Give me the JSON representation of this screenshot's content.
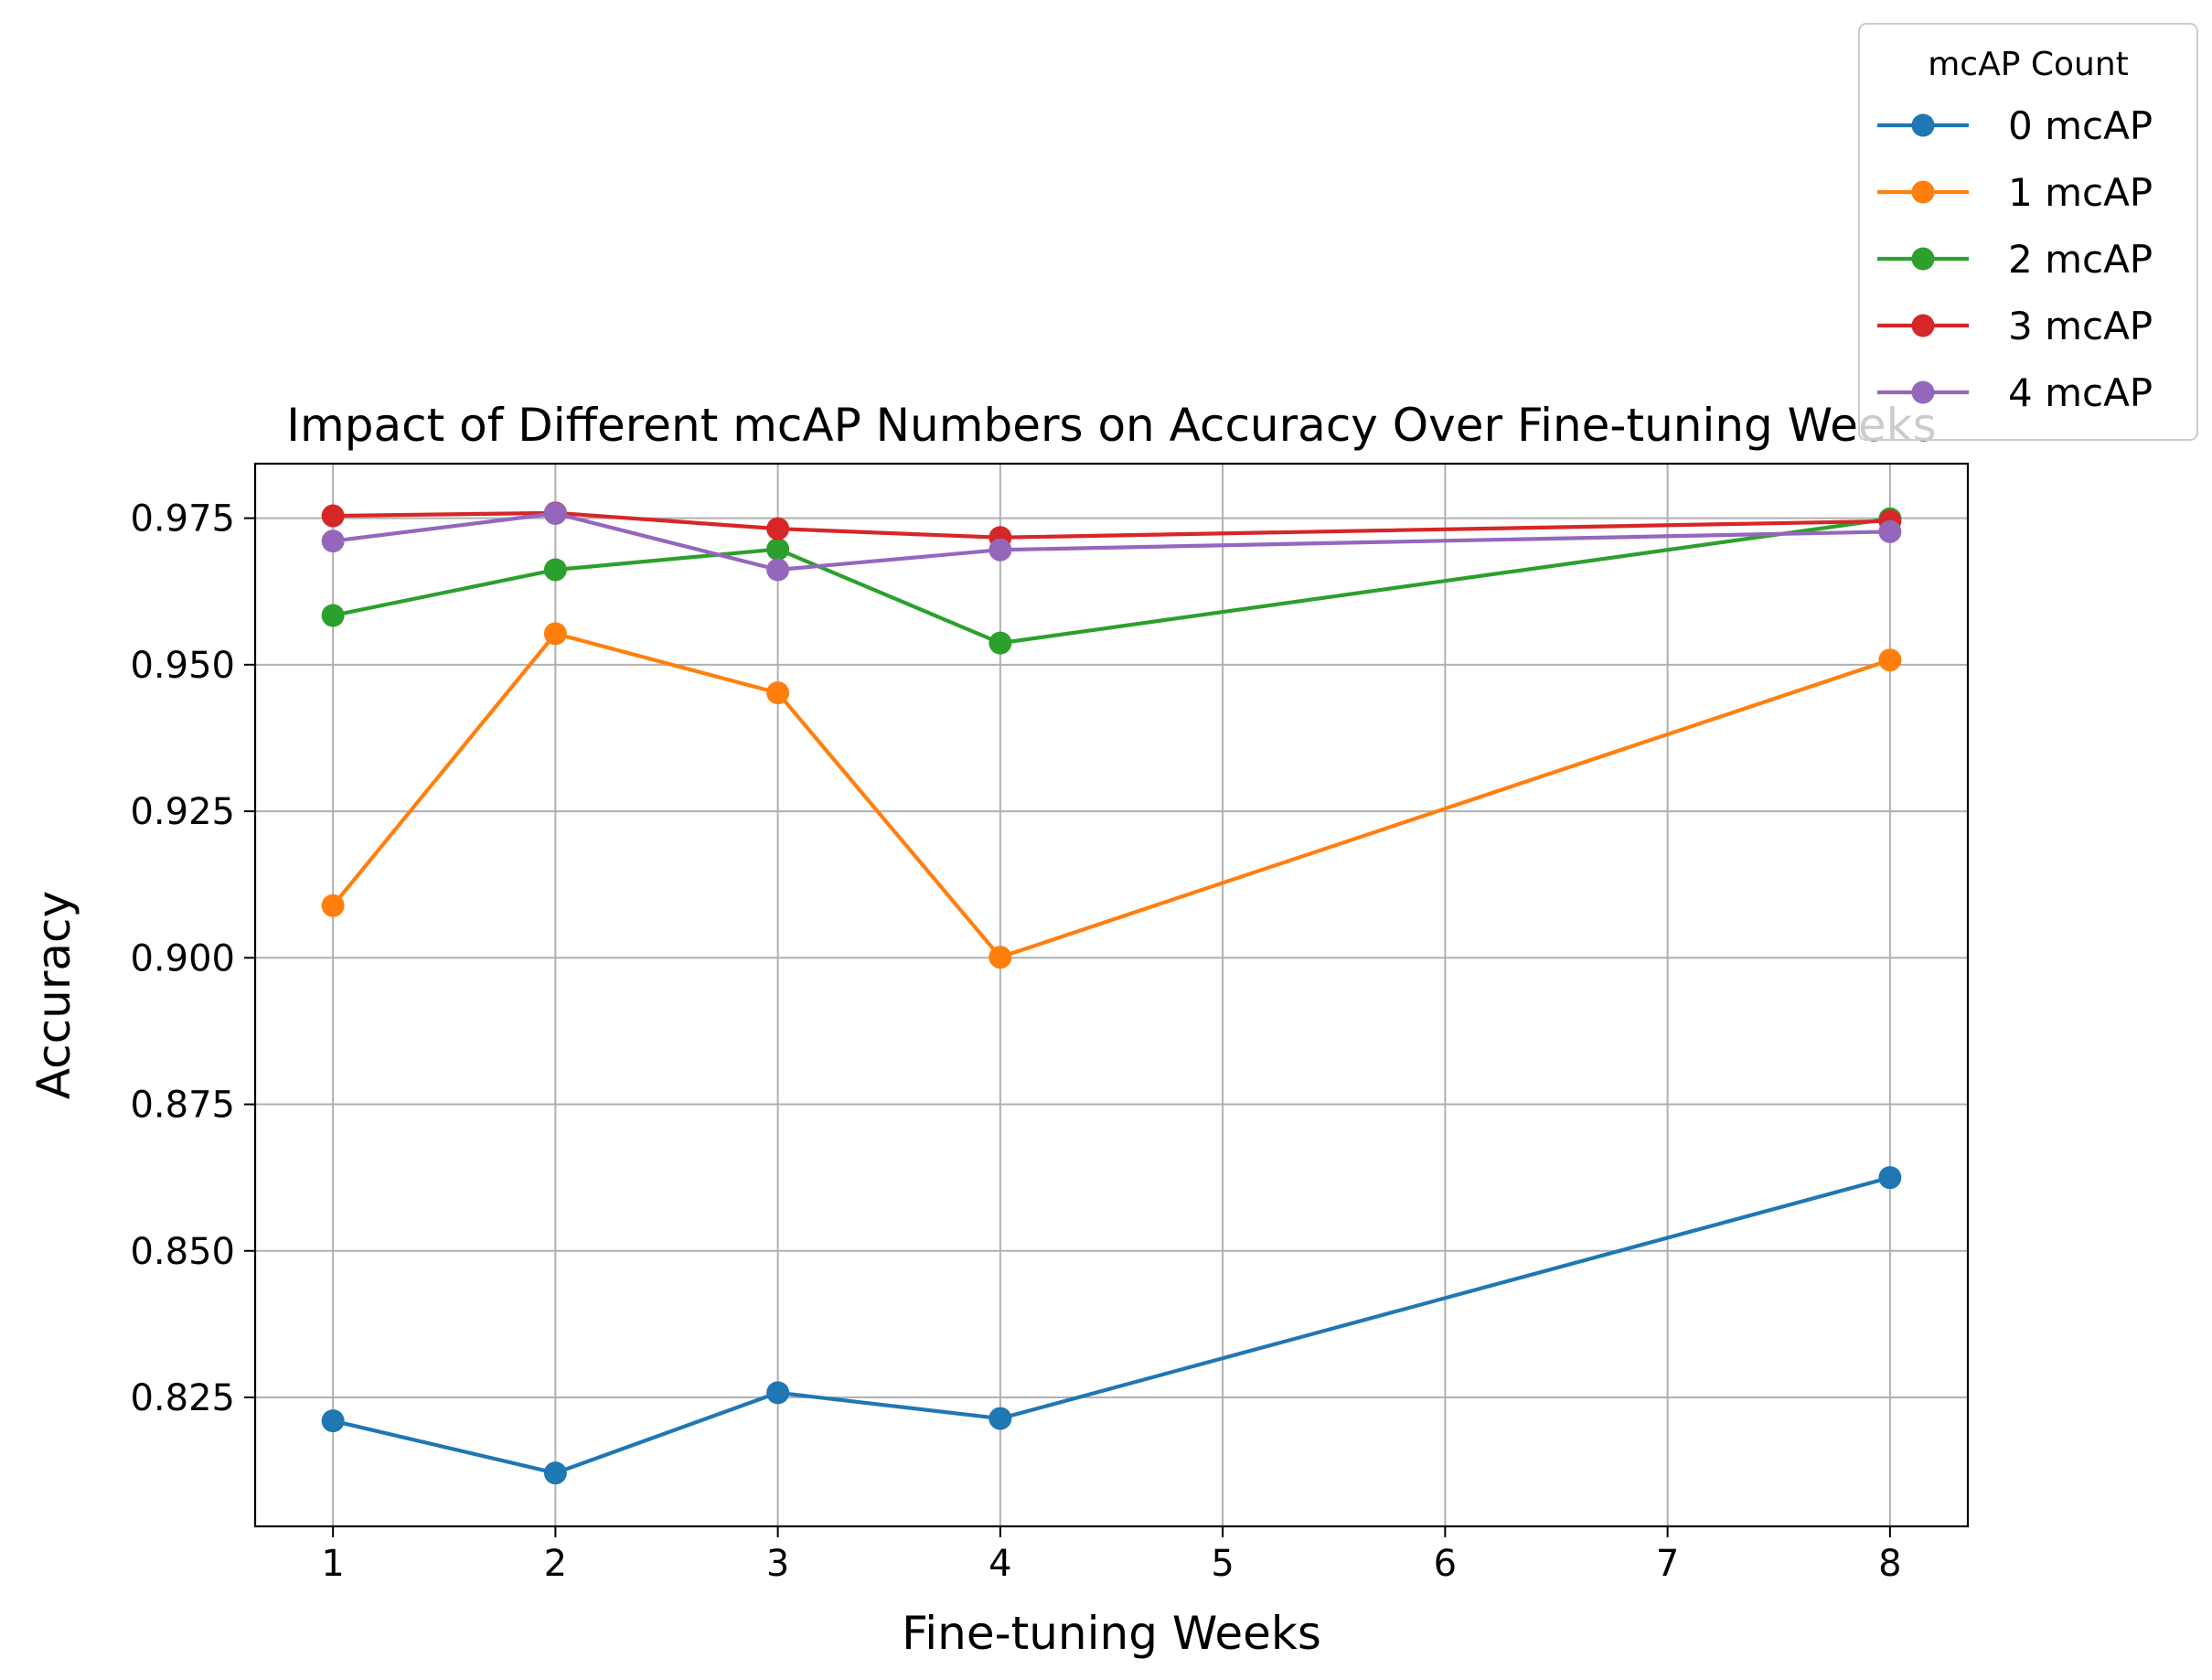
{
  "chart_data": {
    "type": "line",
    "title": "Impact of Different mcAP Numbers on Accuracy Over Fine-tuning Weeks",
    "xlabel": "Fine-tuning Weeks",
    "ylabel": "Accuracy",
    "x": [
      1,
      2,
      3,
      4,
      8
    ],
    "xlim": [
      0.65,
      8.35
    ],
    "ylim": [
      0.803,
      0.9843
    ],
    "xticks": [
      1,
      2,
      3,
      4,
      5,
      6,
      7,
      8
    ],
    "yticks": [
      0.825,
      0.85,
      0.875,
      0.9,
      0.925,
      0.95,
      0.975
    ],
    "ytick_labels": [
      "0.825",
      "0.850",
      "0.875",
      "0.900",
      "0.925",
      "0.950",
      "0.975"
    ],
    "grid": true,
    "legend": {
      "title": "mcAP Count",
      "placement": "top-right, outside the axes"
    },
    "series": [
      {
        "name": "0 mcAP",
        "color": "#1f77b4",
        "values": [
          0.821,
          0.8121,
          0.8258,
          0.8214,
          0.8625
        ]
      },
      {
        "name": "1 mcAP",
        "color": "#ff7f0e",
        "values": [
          0.9089,
          0.9553,
          0.9452,
          0.9001,
          0.9508
        ]
      },
      {
        "name": "2 mcAP",
        "color": "#2ca02c",
        "values": [
          0.9584,
          0.9662,
          0.9697,
          0.9537,
          0.9749
        ]
      },
      {
        "name": "3 mcAP",
        "color": "#d62728",
        "values": [
          0.9754,
          0.9759,
          0.9732,
          0.9717,
          0.9745
        ]
      },
      {
        "name": "4 mcAP",
        "color": "#9467bd",
        "values": [
          0.9711,
          0.9758,
          0.9662,
          0.9696,
          0.9727
        ]
      }
    ]
  }
}
